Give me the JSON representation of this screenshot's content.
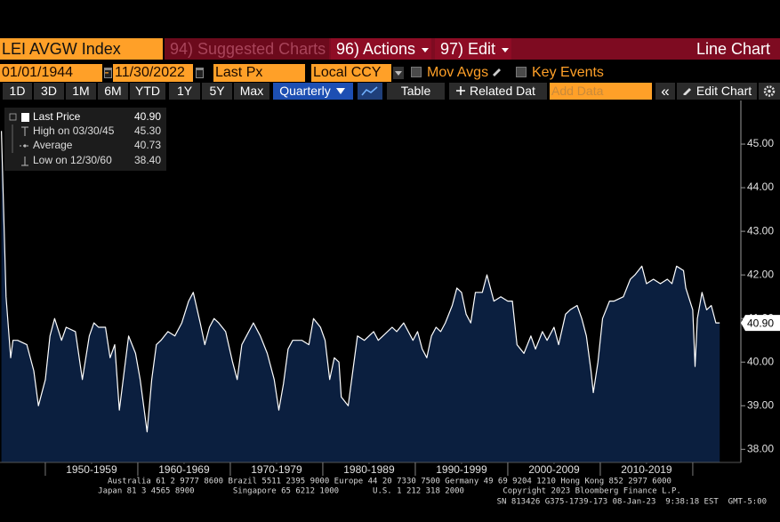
{
  "toolbar": {
    "ticker": "LEI AVGW Index",
    "suggested": "94) Suggested Charts",
    "actions": "96) Actions",
    "edit": "97) Edit",
    "chart_type": "Line Chart",
    "start_date": "01/01/1944",
    "date_separator": "-",
    "end_date": "11/30/2022",
    "field": "Last Px",
    "currency": "Local CCY",
    "mov_avgs": "Mov Avgs",
    "key_events": "Key Events",
    "ranges": [
      "1D",
      "3D",
      "1M",
      "6M",
      "YTD",
      "1Y",
      "5Y",
      "Max"
    ],
    "periodicity": "Quarterly",
    "table": "Table",
    "related": "Related Dat",
    "add_data": "Add Data",
    "collapse": "«",
    "edit_chart": "Edit Chart"
  },
  "legend": {
    "rows": [
      {
        "label": "Last Price",
        "value": "40.90"
      },
      {
        "label": "High on 03/30/45",
        "value": "45.30"
      },
      {
        "label": "Average",
        "value": "40.73"
      },
      {
        "label": "Low on 12/30/60",
        "value": "38.40"
      }
    ]
  },
  "chart_data": {
    "type": "line",
    "color": "#ffffff",
    "fill_color": "#0b1f3f",
    "x": [
      1945.25,
      1945.75,
      1946.25,
      1946.5,
      1947.0,
      1948.0,
      1948.75,
      1949.25,
      1950.0,
      1950.5,
      1951.0,
      1951.75,
      1952.25,
      1953.25,
      1954.0,
      1954.75,
      1955.25,
      1955.75,
      1956.5,
      1957.0,
      1957.5,
      1958.0,
      1959.0,
      1959.75,
      1960.25,
      1961.0,
      1961.5,
      1962.0,
      1962.5,
      1963.25,
      1964.0,
      1964.75,
      1965.5,
      1966.0,
      1966.75,
      1967.25,
      1967.75,
      1968.25,
      1968.75,
      1969.5,
      1970.25,
      1970.75,
      1971.25,
      1971.75,
      1972.5,
      1973.25,
      1974.0,
      1974.75,
      1975.25,
      1975.75,
      1976.25,
      1976.75,
      1977.75,
      1978.5,
      1979.0,
      1979.75,
      1980.25,
      1980.75,
      1981.25,
      1981.75,
      1982.0,
      1982.75,
      1983.25,
      1983.75,
      1984.5,
      1985.0,
      1985.5,
      1986.0,
      1986.5,
      1987.5,
      1988.0,
      1988.75,
      1989.25,
      1989.75,
      1990.25,
      1990.75,
      1991.25,
      1991.75,
      1992.25,
      1992.75,
      1993.25,
      1994.0,
      1994.5,
      1995.0,
      1995.5,
      1996.0,
      1996.5,
      1997.25,
      1997.75,
      1998.5,
      1999.25,
      2000.0,
      2000.5,
      2001.0,
      2001.75,
      2002.5,
      2003.0,
      2003.75,
      2004.25,
      2005.0,
      2005.5,
      2006.25,
      2006.75,
      2007.5,
      2008.0,
      2008.5,
      2009.0,
      2009.25,
      2009.75,
      2010.25,
      2011.0,
      2011.5,
      2012.5,
      2013.25,
      2013.75,
      2014.5,
      2015.0,
      2015.75,
      2016.5,
      2017.25,
      2017.75,
      2018.25,
      2019.0,
      2019.25,
      2020.0,
      2020.25,
      2020.5,
      2021.0,
      2021.5,
      2022.0,
      2022.5,
      2022.91
    ],
    "values": [
      45.3,
      41.5,
      40.1,
      40.5,
      40.5,
      40.4,
      39.8,
      39.0,
      39.6,
      40.6,
      41.0,
      40.5,
      40.8,
      40.7,
      39.6,
      40.6,
      40.9,
      40.8,
      40.8,
      40.1,
      40.4,
      38.9,
      40.6,
      40.2,
      39.6,
      38.4,
      39.6,
      40.4,
      40.5,
      40.7,
      40.6,
      40.9,
      41.4,
      41.6,
      40.9,
      40.4,
      40.8,
      41.0,
      40.9,
      40.7,
      40.0,
      39.6,
      40.4,
      40.6,
      40.9,
      40.6,
      40.2,
      39.6,
      38.9,
      39.5,
      40.3,
      40.5,
      40.5,
      40.4,
      41.0,
      40.8,
      40.5,
      39.6,
      40.1,
      40.0,
      39.2,
      39.0,
      39.8,
      40.6,
      40.5,
      40.6,
      40.7,
      40.5,
      40.6,
      40.8,
      40.7,
      40.9,
      40.7,
      40.5,
      40.7,
      40.3,
      40.1,
      40.6,
      40.8,
      40.7,
      40.9,
      41.3,
      41.7,
      41.6,
      41.1,
      40.9,
      41.6,
      41.6,
      42.0,
      41.4,
      41.5,
      41.4,
      41.4,
      40.4,
      40.2,
      40.6,
      40.3,
      40.7,
      40.5,
      40.8,
      40.4,
      41.1,
      41.2,
      41.3,
      41.0,
      40.6,
      39.8,
      39.3,
      40.0,
      41.0,
      41.4,
      41.4,
      41.5,
      41.9,
      42.0,
      42.2,
      41.8,
      41.9,
      41.8,
      41.9,
      41.8,
      42.2,
      42.1,
      41.7,
      41.2,
      39.9,
      41.0,
      41.6,
      41.2,
      41.3,
      40.9,
      40.9
    ],
    "xlim": [
      1945.1,
      2025.2
    ],
    "xticks": [
      {
        "value": 1955,
        "label": "1950-1959"
      },
      {
        "value": 1965,
        "label": "1960-1969"
      },
      {
        "value": 1975,
        "label": "1970-1979"
      },
      {
        "value": 1985,
        "label": "1980-1989"
      },
      {
        "value": 1995,
        "label": "1990-1999"
      },
      {
        "value": 2005,
        "label": "2000-2009"
      },
      {
        "value": 2015,
        "label": "2010-2019"
      }
    ],
    "ylim": [
      37.7,
      46.0
    ],
    "yticks": [
      {
        "value": 38,
        "label": "38.00"
      },
      {
        "value": 39,
        "label": "39.00"
      },
      {
        "value": 40,
        "label": "40.00"
      },
      {
        "value": 41,
        "label": "41.00"
      },
      {
        "value": 42,
        "label": "42.00"
      },
      {
        "value": 43,
        "label": "43.00"
      },
      {
        "value": 44,
        "label": "44.00"
      },
      {
        "value": 45,
        "label": "45.00"
      }
    ],
    "last_value": {
      "value": 40.9,
      "label": "40.90"
    }
  },
  "footer": [
    "Australia 61 2 9777 8600 Brazil 5511 2395 9000 Europe 44 20 7330 7500 Germany 49 69 9204 1210 Hong Kong 852 2977 6000",
    "Japan 81 3 4565 8900        Singapore 65 6212 1000       U.S. 1 212 318 2000        Copyright 2023 Bloomberg Finance L.P.",
    "SN 813426 G375-1739-173 08-Jan-23  9:38:18 EST  GMT-5:00"
  ]
}
